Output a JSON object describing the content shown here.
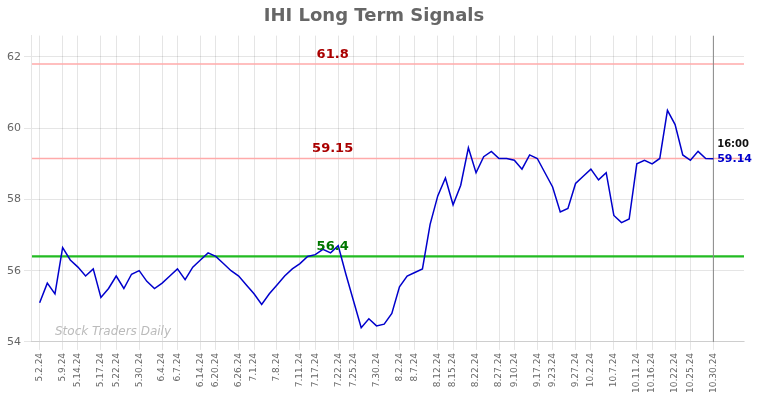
{
  "chart_data": {
    "type": "line",
    "title": "IHI Long Term Signals",
    "color": "#0000cc",
    "grid": true,
    "ylim": [
      54.0,
      62.6
    ],
    "yticks": [
      54,
      56,
      58,
      60,
      62
    ],
    "categories": [
      "5.2.24",
      null,
      null,
      "5.9.24",
      null,
      "5.14.24",
      null,
      null,
      "5.17.24",
      null,
      "5.22.24",
      null,
      null,
      "5.30.24",
      null,
      null,
      "6.4.24",
      null,
      "6.7.24",
      null,
      null,
      "6.14.24",
      null,
      "6.20.24",
      null,
      null,
      "6.26.24",
      null,
      "7.1.24",
      null,
      null,
      "7.8.24",
      null,
      null,
      "7.11.24",
      null,
      "7.17.24",
      null,
      null,
      "7.22.24",
      null,
      "7.25.24",
      null,
      null,
      "7.30.24",
      null,
      null,
      "8.2.24",
      null,
      "8.7.24",
      null,
      null,
      "8.12.24",
      null,
      "8.15.24",
      null,
      null,
      "8.22.24",
      null,
      null,
      "8.27.24",
      null,
      "9.10.24",
      null,
      null,
      "9.17.24",
      null,
      "9.23.24",
      null,
      null,
      "9.27.24",
      null,
      "10.2.24",
      null,
      null,
      "10.7.24",
      null,
      null,
      "10.11.24",
      null,
      "10.16.24",
      null,
      null,
      "10.22.24",
      null,
      "10.25.24",
      null,
      null,
      "10.30.24"
    ],
    "values": [
      55.1,
      55.65,
      55.35,
      56.65,
      56.3,
      56.1,
      55.85,
      56.05,
      55.25,
      55.5,
      55.85,
      55.5,
      55.9,
      56.0,
      55.7,
      55.5,
      55.65,
      55.85,
      56.05,
      55.75,
      56.1,
      56.3,
      56.5,
      56.4,
      56.2,
      56.0,
      55.85,
      55.6,
      55.35,
      55.05,
      55.35,
      55.6,
      55.85,
      56.05,
      56.2,
      56.4,
      56.45,
      56.6,
      56.5,
      56.7,
      55.9,
      55.15,
      54.4,
      54.65,
      54.45,
      54.5,
      54.8,
      55.55,
      55.85,
      55.95,
      56.05,
      57.3,
      58.1,
      58.6,
      57.85,
      58.4,
      59.45,
      58.75,
      59.2,
      59.35,
      59.15,
      59.15,
      59.1,
      58.85,
      59.25,
      59.15,
      58.75,
      58.35,
      57.65,
      57.75,
      58.45,
      58.65,
      58.85,
      58.55,
      58.75,
      57.55,
      57.35,
      57.45,
      59.0,
      59.1,
      59.0,
      59.15,
      60.5,
      60.1,
      59.25,
      59.1,
      59.35,
      59.15,
      59.14
    ],
    "reference_lines": [
      {
        "value": 56.4,
        "label": "56.4",
        "color": "#22bb22",
        "label_color": "#007700"
      },
      {
        "value": 59.15,
        "label": "59.15",
        "color": "#ffaaaa",
        "label_color": "#aa0000"
      },
      {
        "value": 61.8,
        "label": "61.8",
        "color": "#ffaaaa",
        "label_color": "#aa0000"
      }
    ],
    "watermark": {
      "text": "Stock Traders Daily",
      "color": "#bbbbbb"
    },
    "last_labels": [
      {
        "text": "16:00",
        "color": "#111111"
      },
      {
        "text": "59.14",
        "color": "#0000cc"
      }
    ]
  }
}
